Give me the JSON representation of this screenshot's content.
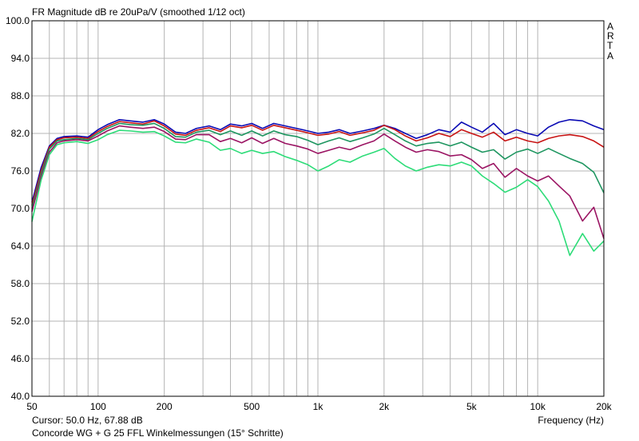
{
  "header": {
    "title": "FR Magnitude dB re 20uPa/V (smoothed 1/12 oct)",
    "brand": [
      "A",
      "R",
      "T",
      "A"
    ]
  },
  "footer": {
    "cursor": "Cursor: 50.0 Hz, 67.88 dB",
    "caption": "Concorde WG + G 25 FFL Winkelmessungen (15° Schritte)",
    "xlabel": "Frequency (Hz)"
  },
  "chart_data": {
    "type": "line",
    "title": "FR Magnitude dB re 20uPa/V (smoothed 1/12 oct)",
    "xlabel": "Frequency (Hz)",
    "ylabel": "",
    "xscale": "log",
    "xlim": [
      50,
      20000
    ],
    "ylim": [
      40,
      100
    ],
    "grid": true,
    "background": "#ffffff",
    "grid_color": "#b4b4b4",
    "yticks": [
      "40.0",
      "46.0",
      "52.0",
      "58.0",
      "64.0",
      "70.0",
      "76.0",
      "82.0",
      "88.0",
      "94.0",
      "100.0"
    ],
    "xticks": [
      {
        "value": 50,
        "label": "50"
      },
      {
        "value": 100,
        "label": "100"
      },
      {
        "value": 200,
        "label": "200"
      },
      {
        "value": 500,
        "label": "500"
      },
      {
        "value": 1000,
        "label": "1k"
      },
      {
        "value": 2000,
        "label": "2k"
      },
      {
        "value": 5000,
        "label": "5k"
      },
      {
        "value": 10000,
        "label": "10k"
      },
      {
        "value": 20000,
        "label": "20k"
      }
    ],
    "x": [
      50,
      55,
      60,
      65,
      70,
      80,
      90,
      100,
      110,
      125,
      140,
      160,
      180,
      200,
      225,
      250,
      280,
      320,
      360,
      400,
      450,
      500,
      560,
      630,
      710,
      800,
      900,
      1000,
      1120,
      1250,
      1400,
      1600,
      1800,
      2000,
      2240,
      2500,
      2800,
      3150,
      3550,
      4000,
      4500,
      5000,
      5600,
      6300,
      7100,
      8000,
      9000,
      10000,
      11200,
      12500,
      14000,
      16000,
      18000,
      20000
    ],
    "series": [
      {
        "color": "#0a0ab4",
        "values": [
          71.0,
          76.5,
          80.0,
          81.2,
          81.5,
          81.6,
          81.4,
          82.6,
          83.4,
          84.2,
          84.0,
          83.8,
          84.2,
          83.5,
          82.2,
          82.0,
          82.8,
          83.2,
          82.6,
          83.5,
          83.2,
          83.6,
          82.8,
          83.6,
          83.2,
          82.8,
          82.4,
          82.0,
          82.2,
          82.6,
          82.0,
          82.4,
          82.8,
          83.3,
          82.8,
          82.0,
          81.2,
          81.8,
          82.6,
          82.2,
          83.8,
          83.0,
          82.2,
          83.6,
          81.8,
          82.6,
          82.0,
          81.6,
          83.0,
          83.8,
          84.2,
          84.0,
          83.2,
          82.6
        ]
      },
      {
        "color": "#c81414",
        "values": [
          70.5,
          76.0,
          79.8,
          81.0,
          81.3,
          81.4,
          81.2,
          82.3,
          83.1,
          83.9,
          83.7,
          83.5,
          84.0,
          83.2,
          81.9,
          81.7,
          82.5,
          82.9,
          82.3,
          83.2,
          82.9,
          83.3,
          82.5,
          83.3,
          82.9,
          82.5,
          82.1,
          81.7,
          81.9,
          82.3,
          81.7,
          82.1,
          82.5,
          83.3,
          82.6,
          81.6,
          80.8,
          81.3,
          82.0,
          81.5,
          82.6,
          82.0,
          81.4,
          82.2,
          80.8,
          81.4,
          80.8,
          80.5,
          81.2,
          81.6,
          81.8,
          81.5,
          80.8,
          79.8
        ]
      },
      {
        "color": "#1e9660",
        "values": [
          70.0,
          75.5,
          79.5,
          80.8,
          81.0,
          81.2,
          81.0,
          82.0,
          82.8,
          83.6,
          83.4,
          83.3,
          83.6,
          82.8,
          81.5,
          81.4,
          82.2,
          82.5,
          81.8,
          82.4,
          81.7,
          82.4,
          81.6,
          82.4,
          81.8,
          81.5,
          80.9,
          80.2,
          80.8,
          81.3,
          80.7,
          81.3,
          81.9,
          82.8,
          81.8,
          80.8,
          80.0,
          80.4,
          80.6,
          80.0,
          80.6,
          79.8,
          79.0,
          79.4,
          77.9,
          79.0,
          79.5,
          78.8,
          79.6,
          78.8,
          78.0,
          77.2,
          75.8,
          72.5
        ]
      },
      {
        "color": "#9b1463",
        "values": [
          69.5,
          75.0,
          79.0,
          80.5,
          80.8,
          81.0,
          80.8,
          81.6,
          82.4,
          83.2,
          83.0,
          82.8,
          83.0,
          82.3,
          81.1,
          81.0,
          81.8,
          81.8,
          80.7,
          81.2,
          80.5,
          81.3,
          80.4,
          81.2,
          80.4,
          80.0,
          79.5,
          78.8,
          79.3,
          79.8,
          79.4,
          80.2,
          80.8,
          81.9,
          80.8,
          79.8,
          79.0,
          79.4,
          79.1,
          78.4,
          78.6,
          77.8,
          76.4,
          77.2,
          75.0,
          76.4,
          75.2,
          74.4,
          75.2,
          73.6,
          72.0,
          68.0,
          70.2,
          65.2
        ]
      },
      {
        "color": "#2ddc78",
        "values": [
          67.9,
          74.5,
          78.6,
          80.2,
          80.5,
          80.7,
          80.4,
          81.0,
          81.8,
          82.5,
          82.4,
          82.2,
          82.3,
          81.6,
          80.6,
          80.5,
          81.1,
          80.6,
          79.3,
          79.6,
          78.8,
          79.3,
          78.8,
          79.1,
          78.3,
          77.7,
          77.0,
          76.0,
          76.8,
          77.8,
          77.4,
          78.4,
          79.0,
          79.6,
          78.0,
          76.8,
          76.0,
          76.6,
          77.0,
          76.8,
          77.4,
          76.8,
          75.2,
          74.0,
          72.6,
          73.4,
          74.6,
          73.5,
          71.2,
          68.0,
          62.5,
          66.0,
          63.2,
          64.8
        ]
      }
    ]
  }
}
